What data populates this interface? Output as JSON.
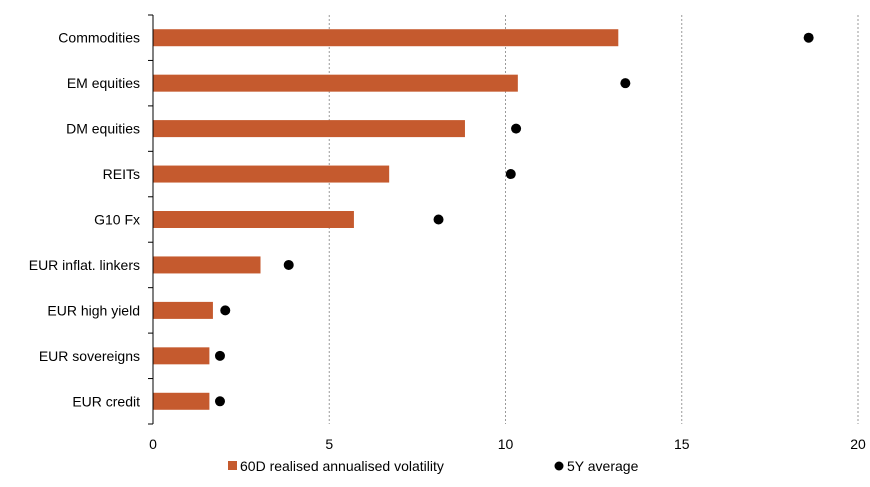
{
  "chart_data": {
    "type": "bar",
    "orientation": "horizontal",
    "categories": [
      "Commodities",
      "EM equities",
      "DM equities",
      "REITs",
      "G10 Fx",
      "EUR inflat. linkers",
      "EUR high yield",
      "EUR sovereigns",
      "EUR credit"
    ],
    "series": [
      {
        "name": "60D realised annualised volatility",
        "kind": "bar",
        "color": "#c55a2e",
        "values": [
          13.2,
          10.35,
          8.85,
          6.7,
          5.7,
          3.05,
          1.7,
          1.6,
          1.6
        ]
      },
      {
        "name": "5Y average",
        "kind": "dot",
        "color": "#000000",
        "values": [
          18.6,
          13.4,
          10.3,
          10.15,
          8.1,
          3.85,
          2.05,
          1.9,
          1.9
        ]
      }
    ],
    "xlim": [
      0,
      20
    ],
    "xticks": [
      0,
      5,
      10,
      15,
      20
    ],
    "grid": "vertical dashed",
    "legend_position": "bottom",
    "title": "",
    "xlabel": "",
    "ylabel": ""
  }
}
